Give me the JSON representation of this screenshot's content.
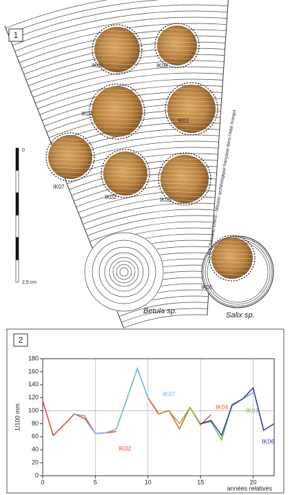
{
  "panel1": {
    "label": "1",
    "samples": [
      "IK06",
      "IK08",
      "IK04",
      "IK01",
      "IK07",
      "IK02",
      "IK03",
      "IK05"
    ],
    "species": [
      "Betula sp.",
      "Salix sp."
    ],
    "scale": [
      "0",
      "2,5 cm"
    ],
    "credit": "© Y. Bernard, CNRS - Mission archéologique française dans l'Altaï mongol"
  },
  "chart_data": {
    "type": "line",
    "panel_label": "2",
    "y_label": "1/100 mm",
    "x_label": "années relatives",
    "x": [
      0,
      1,
      2,
      3,
      4,
      5,
      6,
      7,
      8,
      9,
      10,
      11,
      12,
      13,
      14,
      15,
      16,
      17,
      18,
      19,
      20,
      21,
      22
    ],
    "series": [
      {
        "name": "IK02",
        "color": "#e8472a",
        "values": [
          115,
          62,
          78,
          95,
          88,
          65,
          66,
          68,
          null,
          null,
          null,
          null,
          null,
          null,
          null,
          null,
          null,
          null,
          null,
          null,
          null,
          null,
          null
        ]
      },
      {
        "name": "IK07",
        "color": "#6ab4e8",
        "values": [
          null,
          null,
          null,
          95,
          92,
          65,
          66,
          72,
          118,
          165,
          120,
          97,
          null,
          null,
          null,
          null,
          null,
          null,
          null,
          null,
          null,
          null,
          null
        ]
      },
      {
        "name": "IK04",
        "color": "#f0642a",
        "values": [
          null,
          null,
          null,
          null,
          null,
          null,
          null,
          null,
          null,
          null,
          120,
          95,
          100,
          72,
          105,
          78,
          94,
          null,
          null,
          null,
          null,
          null,
          null
        ]
      },
      {
        "name": "IK01",
        "color": "#7cc142",
        "values": [
          null,
          null,
          null,
          null,
          null,
          null,
          null,
          null,
          null,
          null,
          null,
          null,
          100,
          80,
          105,
          80,
          83,
          55,
          110,
          118,
          128,
          null,
          null
        ]
      },
      {
        "name": "IK06",
        "color": "#3a36c8",
        "values": [
          null,
          null,
          null,
          null,
          null,
          null,
          null,
          null,
          null,
          null,
          null,
          null,
          null,
          null,
          null,
          80,
          85,
          62,
          108,
          118,
          135,
          70,
          80
        ]
      }
    ],
    "xlim": [
      0,
      22
    ],
    "xticks": [
      0,
      5,
      10,
      15,
      20
    ],
    "ylim": [
      0,
      180
    ],
    "yticks": [
      0,
      20,
      40,
      60,
      80,
      100,
      120,
      140,
      160,
      180
    ],
    "grid": "x",
    "hline": 100
  }
}
